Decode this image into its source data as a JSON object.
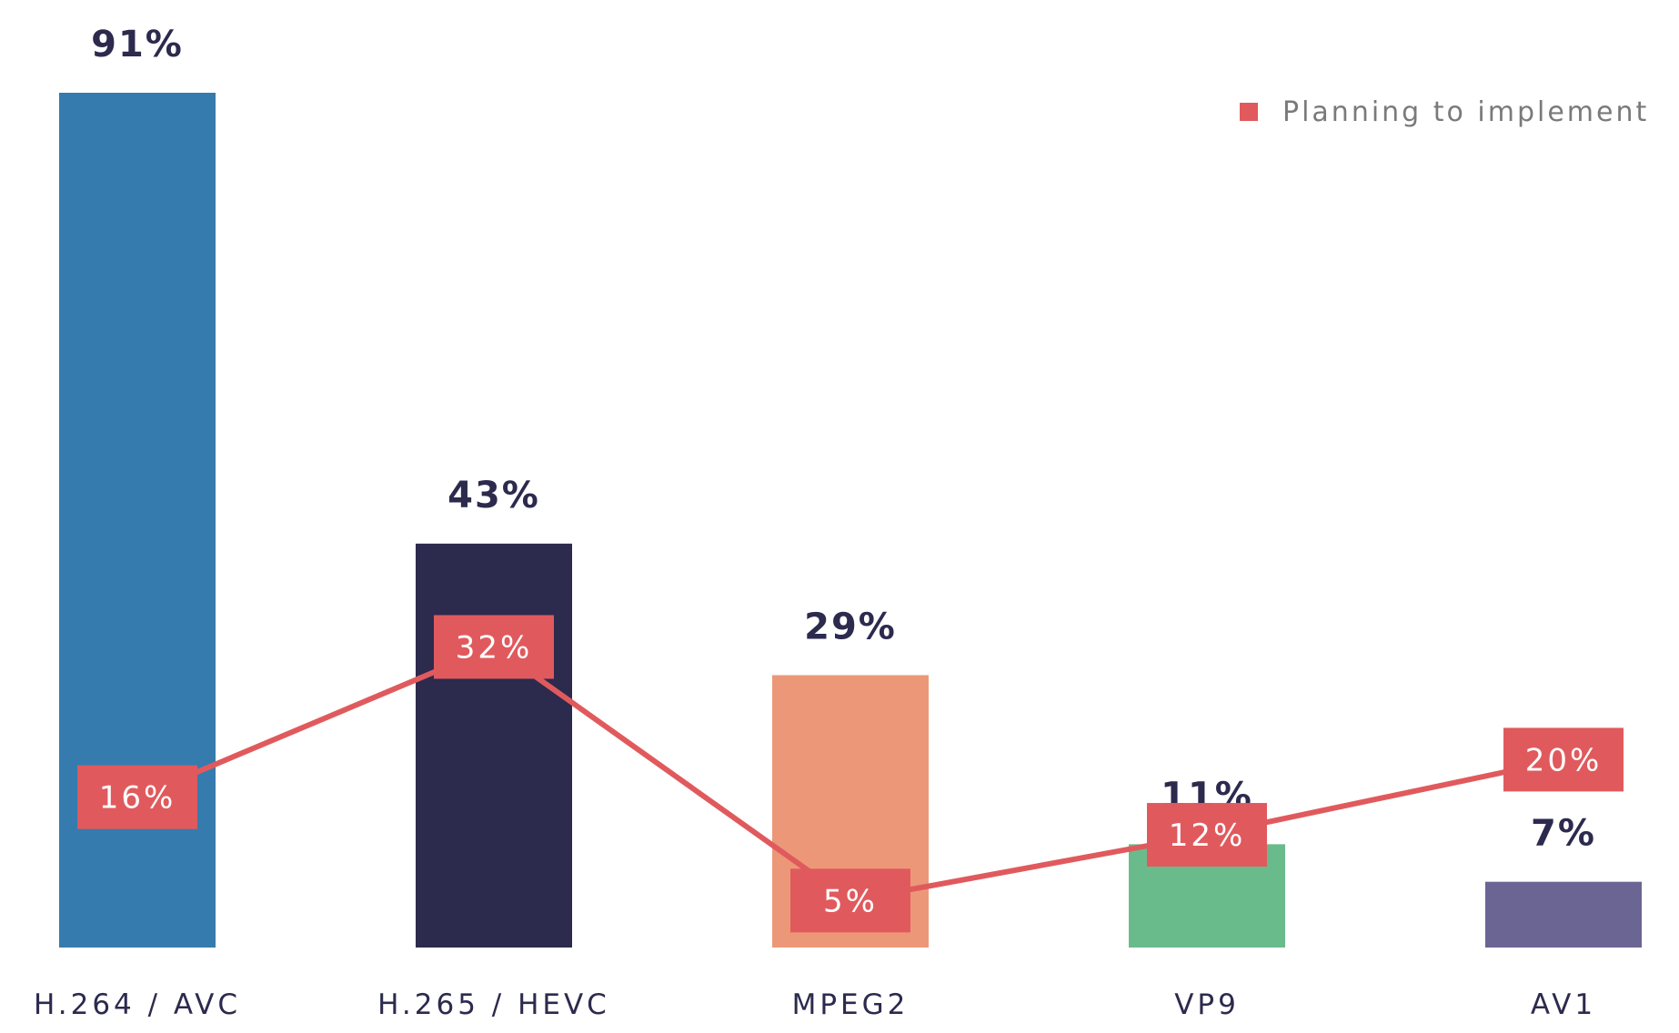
{
  "chart_data": {
    "type": "bar",
    "categories": [
      "H.264 / AVC",
      "H.265 / HEVC",
      "MPEG2",
      "VP9",
      "AV1"
    ],
    "bar_values": [
      91,
      43,
      29,
      11,
      7
    ],
    "bar_value_labels": [
      "91%",
      "43%",
      "29%",
      "11%",
      "7%"
    ],
    "bar_colors": [
      "#357bae",
      "#2c2a4d",
      "#ec9878",
      "#6abb8c",
      "#6a6592"
    ],
    "series": [
      {
        "name": "Planning to implement",
        "type": "line",
        "color": "#e05a5d",
        "values": [
          16,
          32,
          5,
          12,
          20
        ],
        "value_labels": [
          "16%",
          "32%",
          "5%",
          "12%",
          "20%"
        ]
      }
    ],
    "value_unit": "%",
    "ylim": [
      0,
      91
    ],
    "grid": false,
    "legend": {
      "position": "top-right",
      "entries": [
        "Planning to implement"
      ]
    },
    "title": "",
    "xlabel": "",
    "ylabel": ""
  }
}
